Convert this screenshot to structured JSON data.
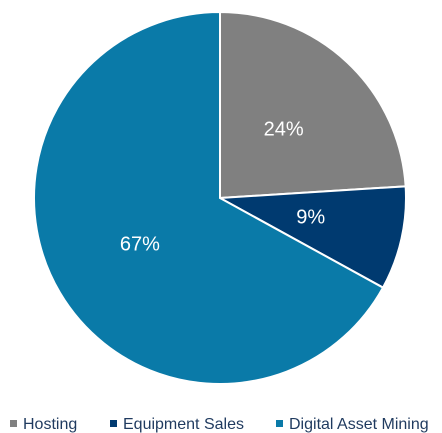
{
  "chart_data": {
    "type": "pie",
    "categories": [
      "Hosting",
      "Equipment Sales",
      "Digital Asset Mining"
    ],
    "values": [
      24,
      9,
      67
    ],
    "value_labels": [
      "24%",
      "9%",
      "67%"
    ],
    "colors": [
      "#808080",
      "#003a70",
      "#0a7aa8"
    ],
    "legend": "bottom"
  }
}
